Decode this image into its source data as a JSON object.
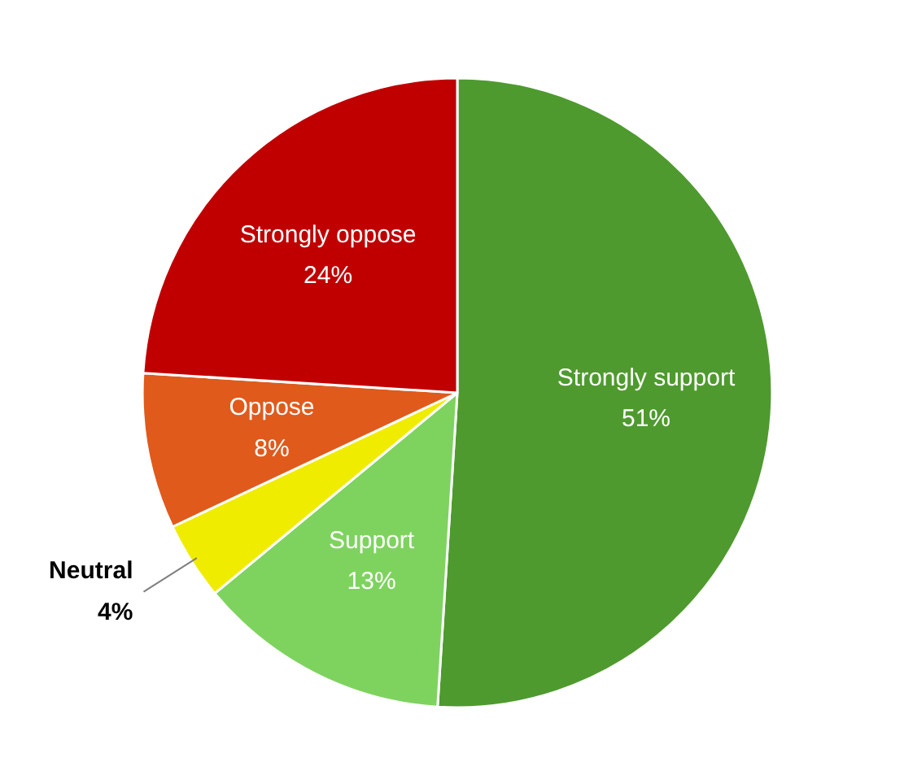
{
  "chart_data": {
    "type": "pie",
    "categories": [
      "Strongly support",
      "Support",
      "Neutral",
      "Oppose",
      "Strongly oppose"
    ],
    "values": [
      51,
      13,
      4,
      8,
      24
    ],
    "value_labels": [
      "51%",
      "13%",
      "4%",
      "8%",
      "24%"
    ],
    "colors": [
      "#4e9a2e",
      "#7ed35f",
      "#f0ec00",
      "#e05a1c",
      "#c00000"
    ]
  }
}
